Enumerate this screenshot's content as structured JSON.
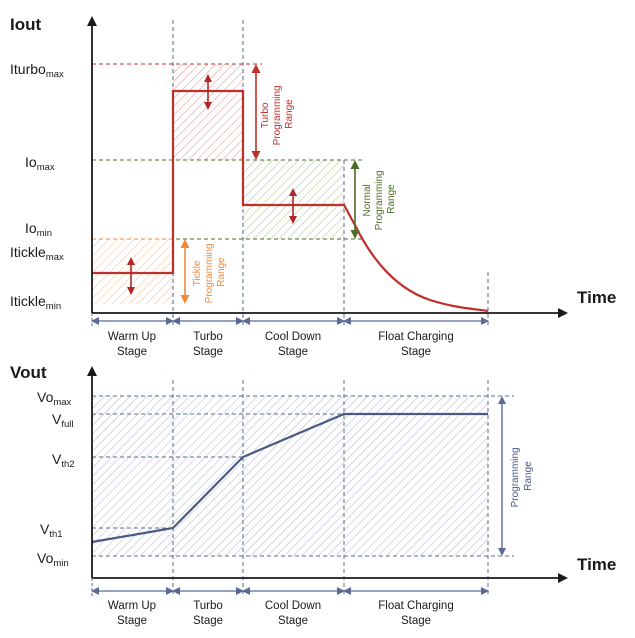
{
  "colors": {
    "axis": "#1a1a1a",
    "current": "#c0302a",
    "voltage": "#4a5a85",
    "turbo": "#c0302a",
    "normal": "#4e6b2a",
    "normal_fill": "#a9bf7a",
    "tickle": "#f08a3e",
    "tickle_fill": "#f2b27c",
    "prog": "#4a5a85",
    "prog_fill": "#9aa6c4",
    "dash": "#5a6a95"
  },
  "top": {
    "y_axis_title": "Iout",
    "x_axis_title": "Time",
    "levels": [
      {
        "id": "iturbo-max",
        "main": "Iturbo",
        "sub": "max"
      },
      {
        "id": "io-max",
        "main": "Io",
        "sub": "max"
      },
      {
        "id": "io-min",
        "main": "Io",
        "sub": "min"
      },
      {
        "id": "itickle-max",
        "main": "Itickle",
        "sub": "max"
      },
      {
        "id": "itickle-min",
        "main": "Itickle",
        "sub": "min"
      }
    ],
    "ranges": {
      "turbo": [
        "Turbo",
        "Programming",
        "Range"
      ],
      "normal": [
        "Normal",
        "Programming",
        "Range"
      ],
      "tickle": [
        "Tickle",
        "Programming",
        "Range"
      ]
    }
  },
  "bottom": {
    "y_axis_title": "Vout",
    "x_axis_title": "Time",
    "levels": [
      {
        "id": "vo-max",
        "main": "Vo",
        "sub": "max"
      },
      {
        "id": "v-full",
        "main": "V",
        "sub": "full"
      },
      {
        "id": "v-th2",
        "main": "V",
        "sub": "th2"
      },
      {
        "id": "v-th1",
        "main": "V",
        "sub": "th1"
      },
      {
        "id": "vo-min",
        "main": "Vo",
        "sub": "min"
      }
    ],
    "range": [
      "Programming",
      "Range"
    ]
  },
  "stages": [
    {
      "line1": "Warm Up",
      "line2": "Stage"
    },
    {
      "line1": "Turbo",
      "line2": "Stage"
    },
    {
      "line1": "Cool Down",
      "line2": "Stage"
    },
    {
      "line1": "Float Charging",
      "line2": "Stage"
    }
  ]
}
